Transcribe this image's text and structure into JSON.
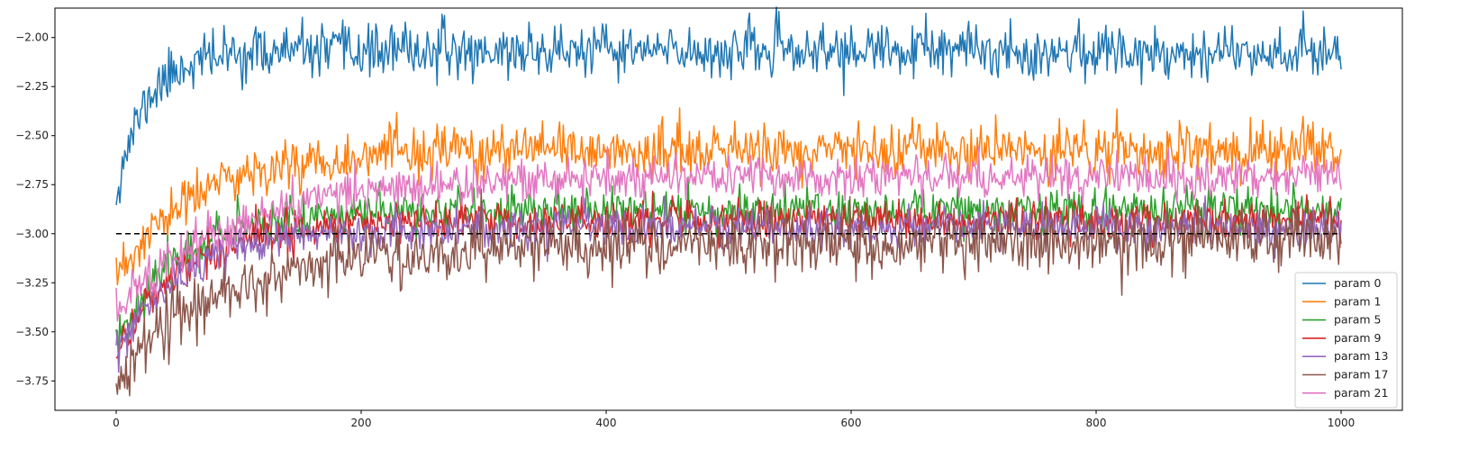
{
  "chart_data": {
    "type": "line",
    "title": "",
    "xlabel": "",
    "ylabel": "",
    "xlim": [
      -50,
      1050
    ],
    "ylim": [
      -3.9,
      -1.85
    ],
    "xticks": [
      0,
      200,
      400,
      600,
      800,
      1000
    ],
    "xtick_labels": [
      "0",
      "200",
      "400",
      "600",
      "800",
      "1000"
    ],
    "yticks": [
      -2.0,
      -2.25,
      -2.5,
      -2.75,
      -3.0,
      -3.25,
      -3.5,
      -3.75
    ],
    "ytick_labels": [
      "−2.00",
      "−2.25",
      "−2.50",
      "−2.75",
      "−3.00",
      "−3.25",
      "−3.50",
      "−3.75"
    ],
    "grid": false,
    "legend_position": "lower-right",
    "num_points": 1001,
    "reference_line": {
      "y": -3.0,
      "x_range": [
        0,
        1000
      ],
      "style": "dashed",
      "color": "#000000"
    },
    "series": [
      {
        "name": "param 0",
        "color": "#1f77b4",
        "start": -2.78,
        "plateau": -2.07,
        "tau": 25,
        "drift": 0.0,
        "noise": 0.065,
        "seed": 11
      },
      {
        "name": "param 1",
        "color": "#ff7f0e",
        "start": -3.25,
        "plateau": -2.58,
        "tau": 60,
        "drift": 0.0,
        "noise": 0.065,
        "seed": 23
      },
      {
        "name": "param 5",
        "color": "#2ca02c",
        "start": -3.55,
        "plateau": -2.88,
        "tau": 50,
        "drift": 0.0,
        "noise": 0.055,
        "seed": 37
      },
      {
        "name": "param 9",
        "color": "#d62728",
        "start": -3.6,
        "plateau": -2.93,
        "tau": 55,
        "drift": 0.0,
        "noise": 0.05,
        "seed": 41
      },
      {
        "name": "param 13",
        "color": "#9467bd",
        "start": -3.62,
        "plateau": -2.97,
        "tau": 55,
        "drift": 0.0,
        "noise": 0.05,
        "seed": 53
      },
      {
        "name": "param 17",
        "color": "#8c564b",
        "start": -3.7,
        "plateau": -3.03,
        "tau": 80,
        "drift": 0.05,
        "noise": 0.075,
        "seed": 67
      },
      {
        "name": "param 21",
        "color": "#e377c2",
        "start": -3.42,
        "plateau": -2.71,
        "tau": 90,
        "drift": 0.0,
        "noise": 0.055,
        "seed": 79
      }
    ]
  }
}
